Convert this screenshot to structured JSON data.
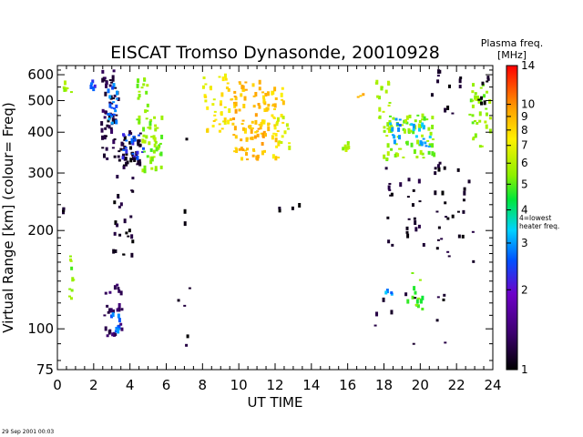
{
  "title": "EISCAT Tromso Dynasonde,  20010928",
  "timestamp": "29 Sep 2001 00:03",
  "chart_data": {
    "type": "scatter",
    "title": "EISCAT Tromso Dynasonde,  20010928",
    "xlabel": "UT TIME",
    "ylabel": "Virtual Range [km]   (colour= Freq)",
    "xlim": [
      0,
      24
    ],
    "ylim": [
      75,
      640
    ],
    "yscale": "log",
    "x_ticks": [
      0,
      2,
      4,
      6,
      8,
      10,
      12,
      14,
      16,
      18,
      20,
      22,
      24
    ],
    "y_ticks": [
      75,
      100,
      200,
      300,
      400,
      500,
      600
    ],
    "colorbar": {
      "title_line1": "Plasma freq.",
      "title_line2": "[MHz]",
      "scale": "log",
      "range": [
        1,
        14
      ],
      "ticks": [
        1,
        2,
        3,
        4,
        5,
        6,
        7,
        8,
        9,
        10,
        14
      ],
      "annotation_line1": "4=lowest",
      "annotation_line2": "heater freq."
    },
    "clusters": [
      {
        "x": [
          0.0,
          0.5
        ],
        "y": [
          225,
          235
        ],
        "freq": 1.1,
        "n": 3
      },
      {
        "x": [
          0.3,
          0.9
        ],
        "y": [
          520,
          580
        ],
        "freq": 5.5,
        "n": 6
      },
      {
        "x": [
          0.6,
          0.9
        ],
        "y": [
          120,
          170
        ],
        "freq": 5.5,
        "n": 10
      },
      {
        "x": [
          1.8,
          2.1
        ],
        "y": [
          520,
          575
        ],
        "freq": 2.5,
        "n": 6
      },
      {
        "x": [
          2.4,
          3.4
        ],
        "y": [
          330,
          620
        ],
        "freq": 1.2,
        "n": 55
      },
      {
        "x": [
          2.8,
          3.3
        ],
        "y": [
          420,
          560
        ],
        "freq": 2.8,
        "n": 20
      },
      {
        "x": [
          2.6,
          3.6
        ],
        "y": [
          95,
          140
        ],
        "freq": 1.3,
        "n": 30
      },
      {
        "x": [
          2.9,
          3.5
        ],
        "y": [
          98,
          112
        ],
        "freq": 2.8,
        "n": 10
      },
      {
        "x": [
          3.4,
          4.6
        ],
        "y": [
          310,
          400
        ],
        "freq": 1.1,
        "n": 45
      },
      {
        "x": [
          3.6,
          4.8
        ],
        "y": [
          330,
          400
        ],
        "freq": 2.5,
        "n": 20
      },
      {
        "x": [
          4.4,
          5.0
        ],
        "y": [
          420,
          600
        ],
        "freq": 5.5,
        "n": 18
      },
      {
        "x": [
          4.7,
          5.8
        ],
        "y": [
          300,
          450
        ],
        "freq": 5.5,
        "n": 45
      },
      {
        "x": [
          3.0,
          4.2
        ],
        "y": [
          160,
          300
        ],
        "freq": 1.1,
        "n": 25
      },
      {
        "x": [
          6.5,
          7.5
        ],
        "y": [
          80,
          400
        ],
        "freq": 1.1,
        "n": 8
      },
      {
        "x": [
          8.0,
          9.5
        ],
        "y": [
          400,
          600
        ],
        "freq": 7.5,
        "n": 40
      },
      {
        "x": [
          9.5,
          11.5
        ],
        "y": [
          330,
          580
        ],
        "freq": 8.8,
        "n": 90
      },
      {
        "x": [
          11.3,
          12.5
        ],
        "y": [
          330,
          560
        ],
        "freq": 8.2,
        "n": 40
      },
      {
        "x": [
          12.0,
          12.8
        ],
        "y": [
          350,
          450
        ],
        "freq": 7.0,
        "n": 15
      },
      {
        "x": [
          12.0,
          13.5
        ],
        "y": [
          225,
          245
        ],
        "freq": 1.1,
        "n": 4
      },
      {
        "x": [
          15.7,
          16.1
        ],
        "y": [
          330,
          375
        ],
        "freq": 6.0,
        "n": 8
      },
      {
        "x": [
          16.4,
          17.0
        ],
        "y": [
          510,
          540
        ],
        "freq": 9.0,
        "n": 3
      },
      {
        "x": [
          17.5,
          18.5
        ],
        "y": [
          400,
          600
        ],
        "freq": 6.0,
        "n": 20
      },
      {
        "x": [
          18.0,
          20.8
        ],
        "y": [
          330,
          450
        ],
        "freq": 5.5,
        "n": 70
      },
      {
        "x": [
          18.3,
          20.6
        ],
        "y": [
          340,
          440
        ],
        "freq": 3.0,
        "n": 25
      },
      {
        "x": [
          18.0,
          21.5
        ],
        "y": [
          170,
          330
        ],
        "freq": 1.1,
        "n": 40
      },
      {
        "x": [
          18.1,
          18.5
        ],
        "y": [
          122,
          132
        ],
        "freq": 3.0,
        "n": 4
      },
      {
        "x": [
          19.3,
          20.2
        ],
        "y": [
          112,
          150
        ],
        "freq": 5.0,
        "n": 15
      },
      {
        "x": [
          17.5,
          21.5
        ],
        "y": [
          85,
          130
        ],
        "freq": 1.1,
        "n": 12
      },
      {
        "x": [
          20.5,
          22.5
        ],
        "y": [
          450,
          620
        ],
        "freq": 1.1,
        "n": 12
      },
      {
        "x": [
          21.5,
          23.0
        ],
        "y": [
          160,
          330
        ],
        "freq": 1.1,
        "n": 15
      },
      {
        "x": [
          22.7,
          23.9
        ],
        "y": [
          360,
          560
        ],
        "freq": 5.5,
        "n": 35
      },
      {
        "x": [
          23.0,
          23.8
        ],
        "y": [
          480,
          600
        ],
        "freq": 1.1,
        "n": 8
      }
    ]
  }
}
